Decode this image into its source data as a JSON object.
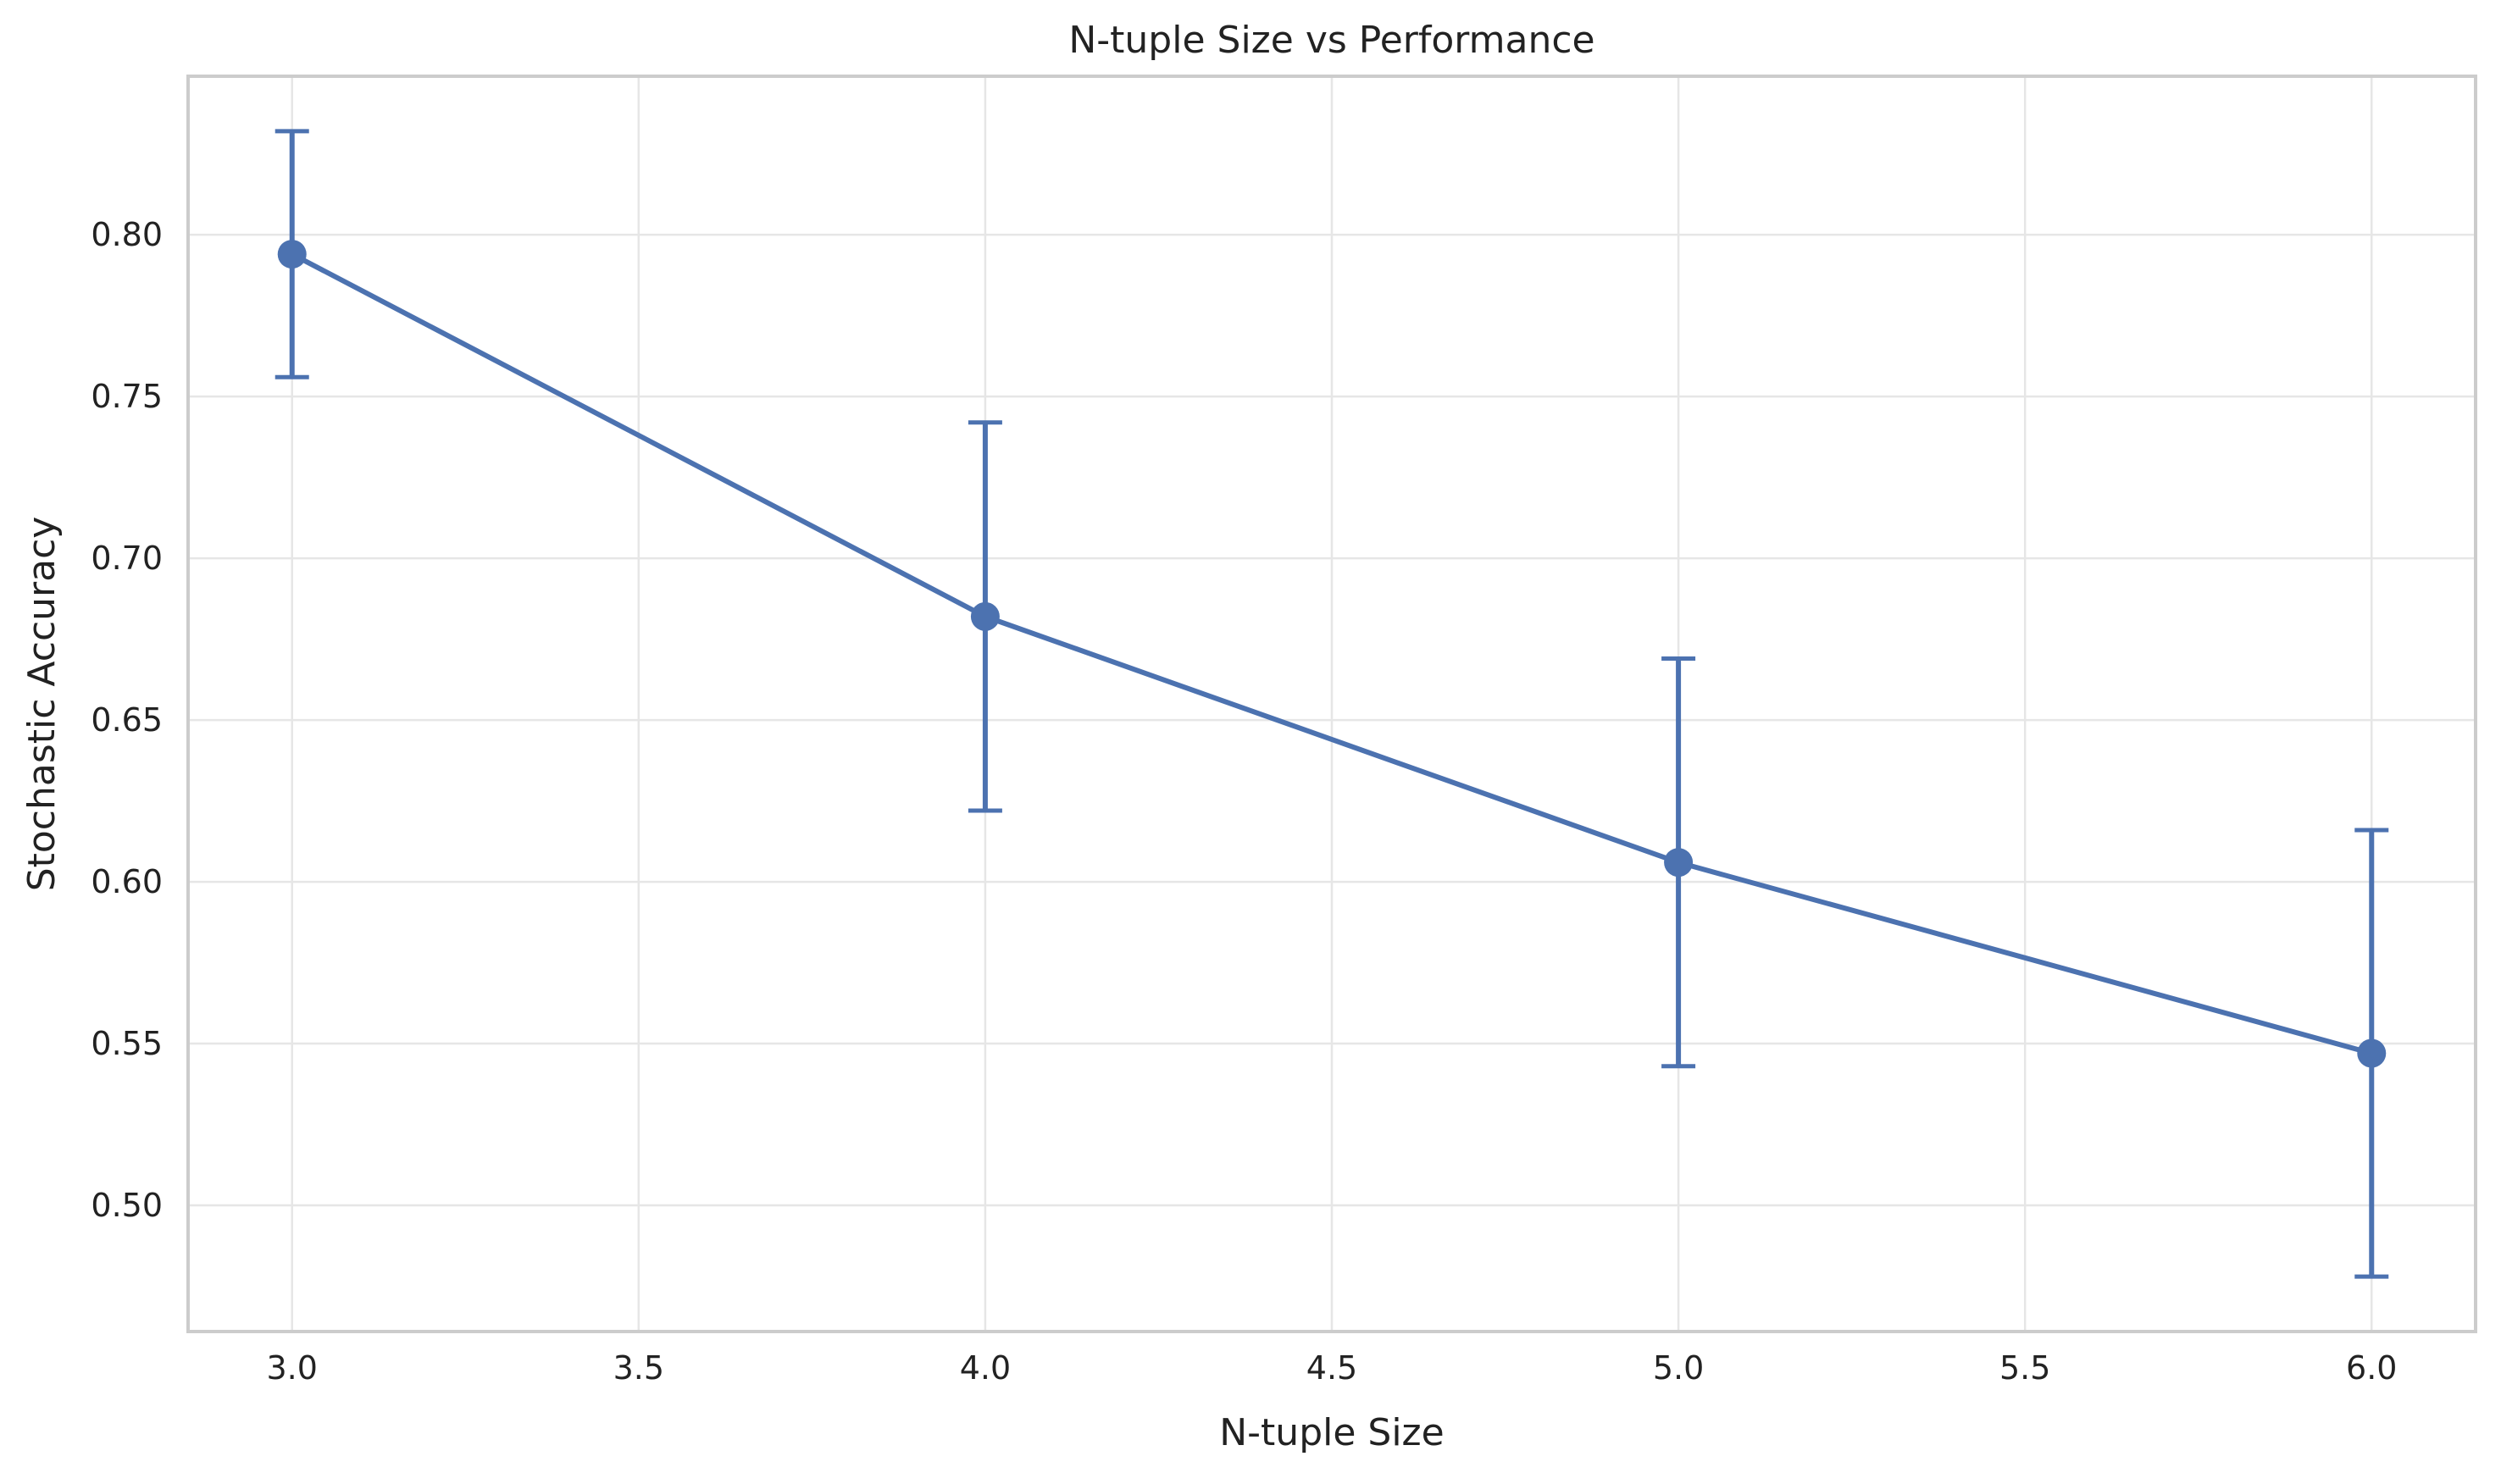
{
  "chart_data": {
    "type": "line",
    "title": "N-tuple Size vs Performance",
    "xlabel": "N-tuple Size",
    "ylabel": "Stochastic Accuracy",
    "xlim": [
      2.85,
      6.15
    ],
    "ylim": [
      0.461,
      0.849
    ],
    "x_ticks": [
      3.0,
      3.5,
      4.0,
      4.5,
      5.0,
      5.5,
      6.0
    ],
    "x_tick_labels": [
      "3.0",
      "3.5",
      "4.0",
      "4.5",
      "5.0",
      "5.5",
      "6.0"
    ],
    "y_ticks": [
      0.5,
      0.55,
      0.6,
      0.65,
      0.7,
      0.75,
      0.8
    ],
    "y_tick_labels": [
      "0.50",
      "0.55",
      "0.60",
      "0.65",
      "0.70",
      "0.75",
      "0.80"
    ],
    "grid": true,
    "series": [
      {
        "name": "Stochastic Accuracy",
        "color": "#4C72B0",
        "x": [
          3,
          4,
          5,
          6
        ],
        "y": [
          0.794,
          0.682,
          0.606,
          0.547
        ],
        "err_lower": [
          0.756,
          0.622,
          0.543,
          0.478
        ],
        "err_upper": [
          0.832,
          0.742,
          0.669,
          0.616
        ]
      }
    ]
  }
}
